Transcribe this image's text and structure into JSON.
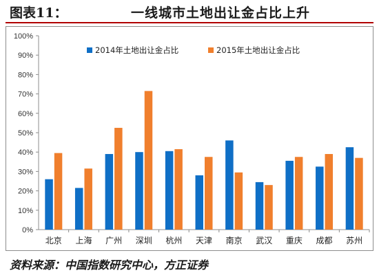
{
  "header": {
    "figure_label": "图表11：",
    "title": "一线城市土地出让金占比上升"
  },
  "footer": {
    "source": "资料来源：中国指数研究中心，方正证券"
  },
  "colors": {
    "series_2014": "#0f6fc6",
    "series_2015": "#f07f2d",
    "title_rule": "#b00000"
  },
  "chart_data": {
    "type": "bar",
    "title": "一线城市土地出让金占比上升",
    "xlabel": "",
    "ylabel": "",
    "ylim": [
      0,
      100
    ],
    "ytick_labels": [
      "0%",
      "10%",
      "20%",
      "30%",
      "40%",
      "50%",
      "60%",
      "70%",
      "80%",
      "90%",
      "100%"
    ],
    "grid": false,
    "legend_position": "top",
    "categories": [
      "北京",
      "上海",
      "广州",
      "深圳",
      "杭州",
      "天津",
      "南京",
      "武汉",
      "重庆",
      "成都",
      "苏州"
    ],
    "series": [
      {
        "name": "2014年土地出让金占比",
        "values": [
          26,
          21.5,
          39,
          40,
          40.5,
          28,
          46,
          24.5,
          35.5,
          32.5,
          42.5
        ]
      },
      {
        "name": "2015年土地出让金占比",
        "values": [
          39.5,
          31.5,
          52.5,
          71.5,
          41.5,
          37.5,
          29.5,
          23,
          37.5,
          39,
          37
        ]
      }
    ]
  }
}
